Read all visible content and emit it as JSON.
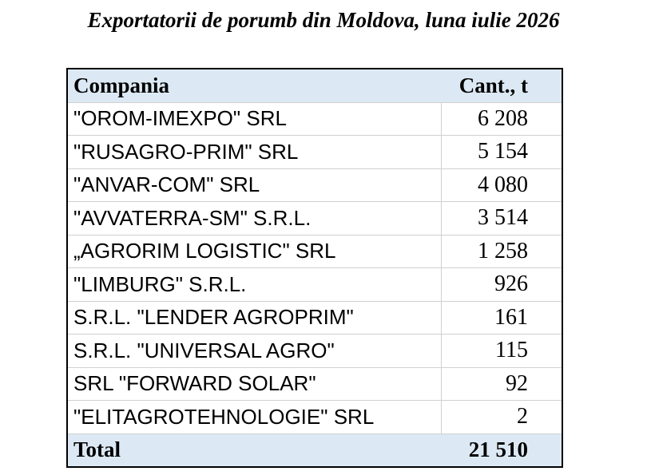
{
  "title": "Exportatorii de porumb din Moldova, luna iulie 2026",
  "table": {
    "header": [
      "Compania",
      "Cant., t"
    ],
    "rows": [
      [
        "\"OROM-IMEXPO\" SRL",
        "6 208"
      ],
      [
        "\"RUSAGRO-PRIM\" SRL",
        "5 154"
      ],
      [
        "\"ANVAR-COM\" SRL",
        "4 080"
      ],
      [
        "\"AVVATERRA-SM\" S.R.L.",
        "3 514"
      ],
      [
        "„AGRORIM LOGISTIC\" SRL",
        "1 258"
      ],
      [
        "\"LIMBURG\" S.R.L.",
        "926"
      ],
      [
        "S.R.L. \"LENDER AGROPRIM\"",
        "161"
      ],
      [
        "S.R.L. \"UNIVERSAL AGRO\"",
        "115"
      ],
      [
        "SRL \"FORWARD SOLAR\"",
        "92"
      ],
      [
        "\"ELITAGROTEHNOLOGIE\" SRL",
        "2"
      ]
    ],
    "total": [
      "Total",
      "21 510"
    ]
  }
}
